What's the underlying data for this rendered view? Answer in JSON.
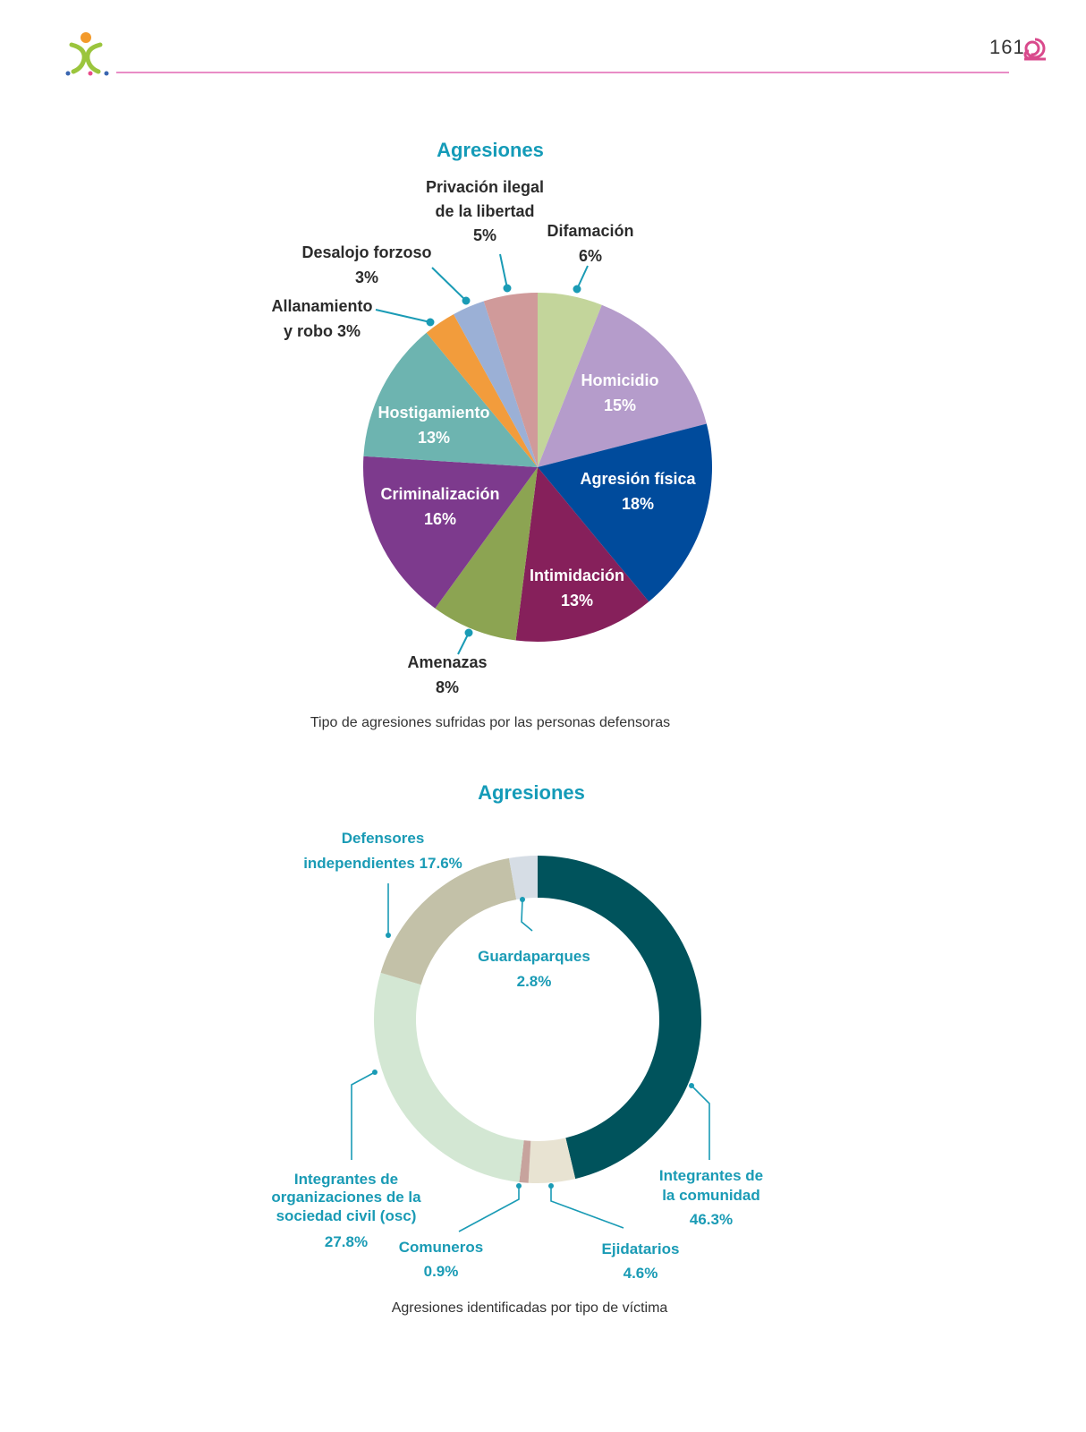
{
  "header": {
    "page_number": "161"
  },
  "chart_data": [
    {
      "type": "pie",
      "title": "Agresiones",
      "caption": "Tipo de agresiones sufridas por las personas defensoras",
      "slices": [
        {
          "label": "Difamación",
          "value": 6,
          "value_label": "6%",
          "color": "#c3d59b"
        },
        {
          "label": "Homicidio",
          "value": 15,
          "value_label": "15%",
          "color": "#b59ccb"
        },
        {
          "label": "Agresión física",
          "value": 18,
          "value_label": "18%",
          "color": "#004b9c"
        },
        {
          "label": "Intimidación",
          "value": 13,
          "value_label": "13%",
          "color": "#86205b"
        },
        {
          "label": "Amenazas",
          "value": 8,
          "value_label": "8%",
          "color": "#8ca452"
        },
        {
          "label": "Criminalización",
          "value": 16,
          "value_label": "16%",
          "color": "#7d3a8d"
        },
        {
          "label": "Hostigamiento",
          "value": 13,
          "value_label": "13%",
          "color": "#6db4b0"
        },
        {
          "label": "Allanamiento y robo",
          "value": 3,
          "value_label": "3%",
          "color": "#f29c3c"
        },
        {
          "label": "Desalojo forzoso",
          "value": 3,
          "value_label": "3%",
          "color": "#9bb0d6"
        },
        {
          "label": "Privación ilegal de la libertad",
          "value": 5,
          "value_label": "5%",
          "color": "#d09a9a"
        }
      ]
    },
    {
      "type": "pie",
      "subtype": "donut",
      "title": "Agresiones",
      "caption": "Agresiones identificadas por tipo de víctima",
      "slices": [
        {
          "label": "Integrantes de la comunidad",
          "value": 46.3,
          "value_label": "46.3%",
          "color": "#00535c"
        },
        {
          "label": "Ejidatarios",
          "value": 4.6,
          "value_label": "4.6%",
          "color": "#e8e3d2"
        },
        {
          "label": "Comuneros",
          "value": 0.9,
          "value_label": "0.9%",
          "color": "#c7a39d"
        },
        {
          "label": "Integrantes de organizaciones de la sociedad civil (osc)",
          "value": 27.8,
          "value_label": "27.8%",
          "color": "#d3e7d3"
        },
        {
          "label": "Defensores independientes",
          "value": 17.6,
          "value_label": "17.6%",
          "color": "#c3c1a8"
        },
        {
          "label": "Guardaparques",
          "value": 2.8,
          "value_label": "2.8%",
          "color": "#d6dde5"
        }
      ]
    }
  ],
  "colors": {
    "title_teal": "#149bb8",
    "header_pink": "#e98cc6",
    "leader_line": "#1a9bb5"
  }
}
